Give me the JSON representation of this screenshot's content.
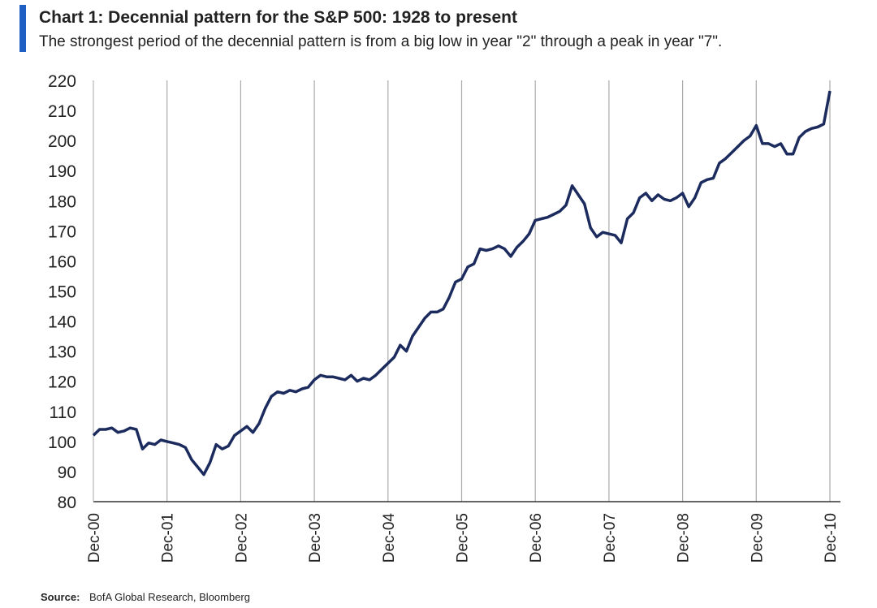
{
  "chart_data": {
    "type": "line",
    "title": "Chart 1: Decennial pattern for the S&P 500: 1928 to present",
    "subtitle": "The strongest period of the decennial pattern is from a big low in year \"2\" through a peak in year \"7\".",
    "source_label": "Source:",
    "source": "BofA Global Research, Bloomberg",
    "categories": [
      "Dec-00",
      null,
      null,
      null,
      null,
      null,
      null,
      null,
      null,
      null,
      null,
      null,
      "Dec-01",
      null,
      null,
      null,
      null,
      null,
      null,
      null,
      null,
      null,
      null,
      null,
      "Dec-02",
      null,
      null,
      null,
      null,
      null,
      null,
      null,
      null,
      null,
      null,
      null,
      "Dec-03",
      null,
      null,
      null,
      null,
      null,
      null,
      null,
      null,
      null,
      null,
      null,
      "Dec-04",
      null,
      null,
      null,
      null,
      null,
      null,
      null,
      null,
      null,
      null,
      null,
      "Dec-05",
      null,
      null,
      null,
      null,
      null,
      null,
      null,
      null,
      null,
      null,
      null,
      "Dec-06",
      null,
      null,
      null,
      null,
      null,
      null,
      null,
      null,
      null,
      null,
      null,
      "Dec-07",
      null,
      null,
      null,
      null,
      null,
      null,
      null,
      null,
      null,
      null,
      null,
      "Dec-08",
      null,
      null,
      null,
      null,
      null,
      null,
      null,
      null,
      null,
      null,
      null,
      "Dec-09",
      null,
      null,
      null,
      null,
      null,
      null,
      null,
      null,
      null,
      null,
      null,
      "Dec-10"
    ],
    "series": [
      {
        "name": "S&P 500 decennial pattern",
        "color": "#1c2b5e",
        "values": [
          102,
          104,
          104,
          104.5,
          103,
          103.5,
          104.5,
          104,
          97.5,
          99.5,
          99,
          100.5,
          100,
          99.5,
          99,
          98,
          94,
          91.5,
          89,
          93,
          99,
          97.5,
          98.5,
          102,
          103.5,
          105,
          103,
          106,
          111,
          115,
          116.5,
          116,
          117,
          116.5,
          117.5,
          118,
          120.5,
          122,
          121.5,
          121.5,
          121,
          120.5,
          122,
          120,
          121,
          120.5,
          122,
          124,
          126,
          128,
          132,
          130,
          135,
          138,
          141,
          143,
          143,
          144,
          148,
          153,
          154,
          158,
          159,
          164,
          163.5,
          164,
          165,
          164,
          161.5,
          164.5,
          166.5,
          169,
          173.5,
          174,
          174.5,
          175.5,
          176.5,
          178.5,
          185,
          182,
          179,
          171,
          168,
          169.5,
          169,
          168.5,
          166,
          174,
          176,
          181,
          182.5,
          180,
          182,
          180.5,
          180,
          181,
          182.5,
          178,
          181,
          186,
          187,
          187.5,
          192.5,
          194,
          196,
          198,
          200,
          201.5,
          205,
          199,
          199,
          198,
          199,
          195.5,
          195.5,
          201,
          203,
          204,
          204.5,
          205.5,
          216.5
        ]
      }
    ],
    "ylim": [
      80,
      220
    ],
    "yticks": [
      80,
      90,
      100,
      110,
      120,
      130,
      140,
      150,
      160,
      170,
      180,
      190,
      200,
      210,
      220
    ],
    "grid": true
  }
}
